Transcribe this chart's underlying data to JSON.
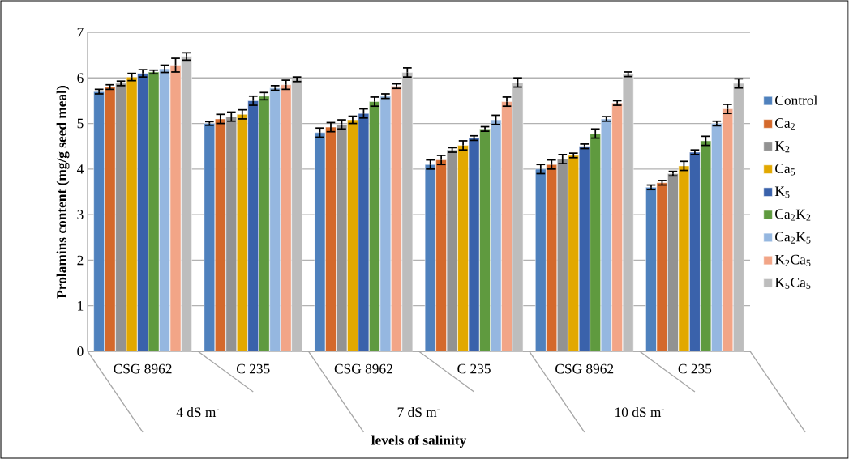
{
  "chart_data": {
    "type": "bar",
    "ylabel": "Prolamins content (mg/g seed meal)",
    "xlabel": "levels of salinity",
    "categories": [
      "CSG 8962",
      "C 235",
      "CSG 8962",
      "C 235",
      "CSG 8962",
      "C 235"
    ],
    "annotations": [
      "4 dS m$^{-}$",
      "7 dS m$^{-}$",
      "10 dS m$^{-}$"
    ],
    "ylim": [
      0,
      7
    ],
    "yticks": [
      0,
      1,
      2,
      3,
      4,
      5,
      6,
      7
    ],
    "grid": "y",
    "legend": "right",
    "series": [
      {
        "name": "Control",
        "color": "#4f81bd",
        "values": [
          5.7,
          5.0,
          4.8,
          4.1,
          4.0,
          3.6
        ],
        "errors": [
          0.05,
          0.04,
          0.1,
          0.1,
          0.1,
          0.05
        ]
      },
      {
        "name": "Ca$_{2}$",
        "color": "#d4692b",
        "values": [
          5.8,
          5.1,
          4.92,
          4.2,
          4.1,
          3.7
        ],
        "errors": [
          0.05,
          0.1,
          0.1,
          0.1,
          0.1,
          0.05
        ]
      },
      {
        "name": "K$_{2}$",
        "color": "#929292",
        "values": [
          5.88,
          5.15,
          4.98,
          4.42,
          4.22,
          3.9
        ],
        "errors": [
          0.05,
          0.1,
          0.1,
          0.05,
          0.1,
          0.05
        ]
      },
      {
        "name": "Ca$_{5}$",
        "color": "#e2a800",
        "values": [
          6.02,
          5.2,
          5.08,
          4.52,
          4.3,
          4.07
        ],
        "errors": [
          0.08,
          0.1,
          0.08,
          0.1,
          0.05,
          0.1
        ]
      },
      {
        "name": "K$_{5}$",
        "color": "#3a62ab",
        "values": [
          6.1,
          5.5,
          5.22,
          4.68,
          4.5,
          4.37
        ],
        "errors": [
          0.08,
          0.1,
          0.1,
          0.05,
          0.05,
          0.05
        ]
      },
      {
        "name": "Ca$_{2}$K$_{2}$",
        "color": "#5f9a3f",
        "values": [
          6.13,
          5.6,
          5.48,
          4.88,
          4.78,
          4.62
        ],
        "errors": [
          0.04,
          0.08,
          0.1,
          0.05,
          0.1,
          0.1
        ]
      },
      {
        "name": "Ca$_{2}$K$_{5}$",
        "color": "#95b7e0",
        "values": [
          6.2,
          5.78,
          5.6,
          5.08,
          5.1,
          5.0
        ],
        "errors": [
          0.08,
          0.05,
          0.05,
          0.1,
          0.05,
          0.05
        ]
      },
      {
        "name": "K$_{2}$Ca$_{5}$",
        "color": "#f2a587",
        "values": [
          6.28,
          5.85,
          5.82,
          5.48,
          5.45,
          5.32
        ],
        "errors": [
          0.15,
          0.1,
          0.05,
          0.1,
          0.05,
          0.1
        ]
      },
      {
        "name": "K$_{5}$Ca$_{5}$",
        "color": "#bdbdbd",
        "values": [
          6.47,
          5.97,
          6.12,
          5.9,
          6.08,
          5.88
        ],
        "errors": [
          0.08,
          0.05,
          0.1,
          0.1,
          0.05,
          0.1
        ]
      }
    ]
  }
}
